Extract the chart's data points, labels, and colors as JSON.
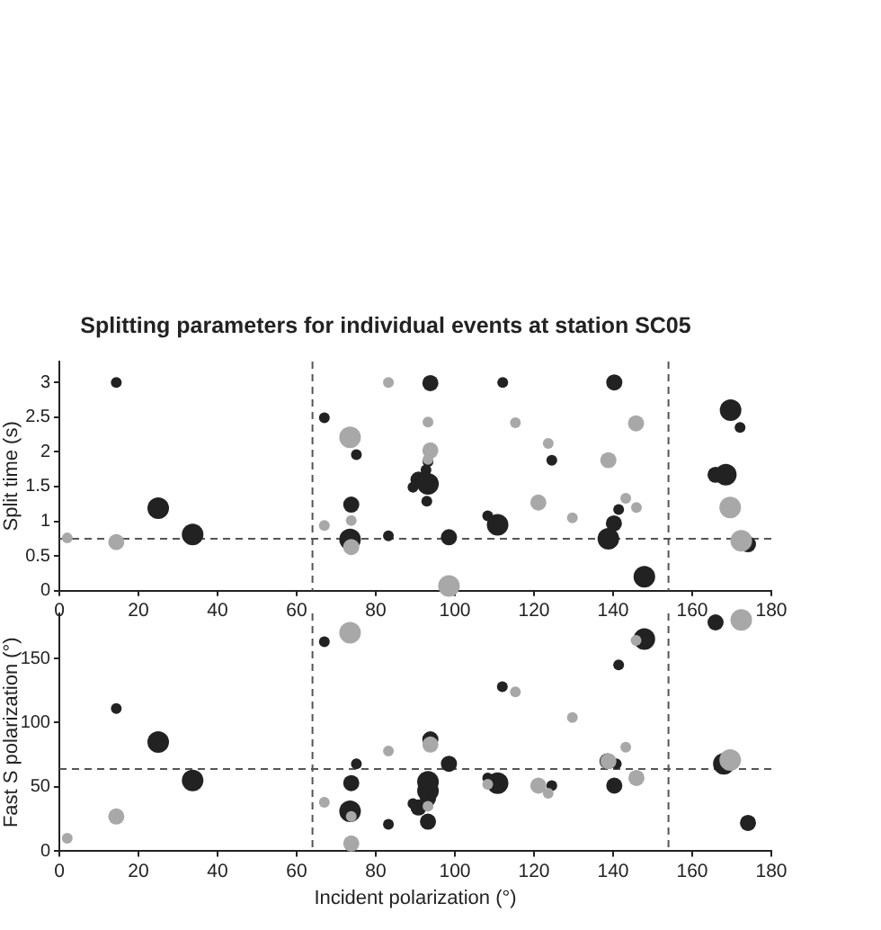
{
  "chart_data": [
    {
      "type": "bubble",
      "title": "Splitting parameters for individual events at station SC05",
      "ylabel": "Split time (s)",
      "xlim": [
        0,
        180
      ],
      "xticks": [
        0,
        20,
        40,
        60,
        80,
        100,
        120,
        140,
        160,
        180
      ],
      "ylim": [
        0,
        3.3
      ],
      "yticks": [
        0,
        0.5,
        1,
        1.5,
        2,
        2.5,
        3
      ],
      "grid": false,
      "legend": false,
      "ref_lines": [
        {
          "axis": "x",
          "value": 64,
          "line_style": "dashed",
          "color": "#555555"
        },
        {
          "axis": "x",
          "value": 154,
          "line_style": "dashed",
          "color": "#555555"
        },
        {
          "axis": "y",
          "value": 0.75,
          "line_style": "dashed",
          "color": "#555555"
        }
      ],
      "series": [
        {
          "color": "#a8a8a8",
          "x": [
            2,
            14.4,
            67,
            73.5,
            73.8,
            73.8,
            83.2,
            93.2,
            93.8,
            93.2,
            98.5,
            115.3,
            123.6,
            121.1,
            129.7,
            138.8,
            145.8,
            143.2,
            145.9,
            169.6,
            172.4
          ],
          "values": [
            0.76,
            0.7,
            0.94,
            2.21,
            1.01,
            0.63,
            3.0,
            2.43,
            2.02,
            1.89,
            0.07,
            2.42,
            2.12,
            1.27,
            1.05,
            1.88,
            2.41,
            1.33,
            1.2,
            1.2,
            0.72
          ],
          "sizes": [
            0.25,
            0.56,
            0.25,
            1,
            0.25,
            0.56,
            0.25,
            0.25,
            0.56,
            0.25,
            1,
            0.25,
            0.25,
            0.56,
            0.25,
            0.56,
            0.56,
            0.25,
            0.25,
            1,
            1
          ]
        },
        {
          "color": "#222222",
          "x": [
            14.4,
            25,
            33.7,
            67,
            75.1,
            73.8,
            73.5,
            83.2,
            93.8,
            89.4,
            90.8,
            92.7,
            93.2,
            93.2,
            92.9,
            98.5,
            112.1,
            108.3,
            110.8,
            124.5,
            140.3,
            141.4,
            140.2,
            138.8,
            147.9,
            169.7,
            172.1,
            165.9,
            168.5,
            174.1
          ],
          "values": [
            3.0,
            1.19,
            0.81,
            2.49,
            1.96,
            1.24,
            0.74,
            0.79,
            2.99,
            1.49,
            1.6,
            1.74,
            1.86,
            1.54,
            1.29,
            0.77,
            3.0,
            1.08,
            0.95,
            1.88,
            3.0,
            1.17,
            0.97,
            0.75,
            0.2,
            2.6,
            2.35,
            1.67,
            1.67,
            0.67
          ],
          "sizes": [
            0.25,
            1,
            1,
            0.25,
            0.25,
            0.56,
            1,
            0.25,
            0.56,
            0.25,
            0.56,
            0.25,
            0.25,
            1,
            0.25,
            0.56,
            0.25,
            0.25,
            1,
            0.25,
            0.56,
            0.25,
            0.56,
            1,
            1,
            1,
            0.25,
            0.56,
            1,
            0.56
          ]
        }
      ]
    },
    {
      "type": "bubble",
      "xlabel": "Incident polarization (°)",
      "ylabel": "Fast S polarization (°)",
      "xlim": [
        0,
        180
      ],
      "xticks": [
        0,
        20,
        40,
        60,
        80,
        100,
        120,
        140,
        160,
        180
      ],
      "ylim": [
        0,
        185
      ],
      "yticks": [
        0,
        50,
        100,
        150
      ],
      "grid": false,
      "legend": false,
      "ref_lines": [
        {
          "axis": "x",
          "value": 64,
          "line_style": "dashed",
          "color": "#555555"
        },
        {
          "axis": "x",
          "value": 154,
          "line_style": "dashed",
          "color": "#555555"
        },
        {
          "axis": "y",
          "value": 64,
          "line_style": "dashed",
          "color": "#555555"
        }
      ],
      "series": [
        {
          "color": "#a8a8a8",
          "x": [
            2,
            14.4,
            67,
            73.5,
            73.8,
            73.8,
            83.2,
            93.8,
            93.2,
            172.4,
            145.8,
            115.3,
            129.7,
            143.2,
            138.8,
            121.1,
            123.6,
            145.9,
            169.6,
            108.3
          ],
          "values": [
            10,
            27,
            38,
            170,
            27,
            6,
            78,
            83,
            35,
            180,
            164,
            124,
            104,
            81,
            70,
            51,
            45,
            57,
            71,
            52
          ],
          "sizes": [
            0.25,
            0.56,
            0.25,
            1,
            0.25,
            0.56,
            0.25,
            0.56,
            0.25,
            1,
            0.25,
            0.25,
            0.25,
            0.25,
            0.56,
            0.56,
            0.25,
            0.56,
            1,
            0.25
          ]
        },
        {
          "color": "#222222",
          "x": [
            14.4,
            25,
            33.7,
            67,
            75.1,
            73.8,
            73.5,
            83.2,
            89.4,
            90.8,
            93.2,
            93.2,
            93.2,
            93.2,
            93.8,
            98.5,
            165.9,
            147.9,
            141.4,
            112,
            108.3,
            110.8,
            124.5,
            140.3,
            140.8,
            138.6,
            168,
            169.6,
            174.1
          ],
          "values": [
            111,
            85,
            55,
            163,
            68,
            53,
            31,
            21,
            37,
            34,
            41,
            47,
            54,
            23,
            87,
            68,
            178,
            165,
            145,
            128,
            57,
            53,
            51,
            51,
            68,
            70,
            68,
            null,
            22
          ],
          "sizes": [
            0.25,
            1,
            1,
            0.25,
            0.25,
            0.56,
            1,
            0.25,
            0.25,
            0.56,
            0.56,
            1,
            1,
            0.56,
            0.56,
            0.56,
            0.56,
            1,
            0.25,
            0.25,
            0.25,
            1,
            0.25,
            0.56,
            0.25,
            0.56,
            1,
            null,
            0.56
          ]
        }
      ]
    }
  ]
}
